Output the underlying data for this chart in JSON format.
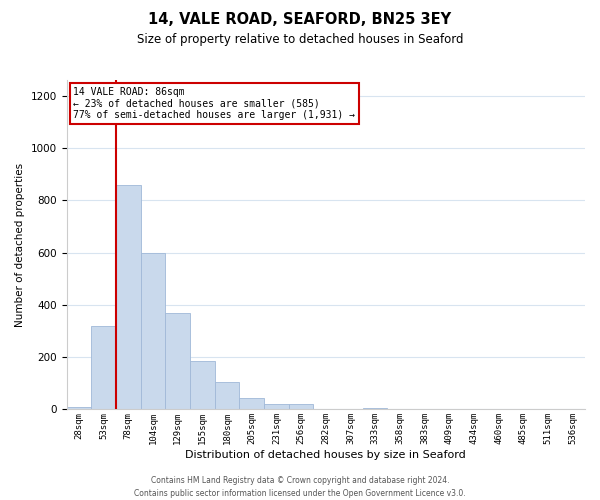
{
  "title": "14, VALE ROAD, SEAFORD, BN25 3EY",
  "subtitle": "Size of property relative to detached houses in Seaford",
  "xlabel": "Distribution of detached houses by size in Seaford",
  "ylabel": "Number of detached properties",
  "bar_labels": [
    "28sqm",
    "53sqm",
    "78sqm",
    "104sqm",
    "129sqm",
    "155sqm",
    "180sqm",
    "205sqm",
    "231sqm",
    "256sqm",
    "282sqm",
    "307sqm",
    "333sqm",
    "358sqm",
    "383sqm",
    "409sqm",
    "434sqm",
    "460sqm",
    "485sqm",
    "511sqm",
    "536sqm"
  ],
  "bar_values": [
    10,
    320,
    860,
    600,
    370,
    185,
    105,
    45,
    20,
    20,
    0,
    0,
    5,
    0,
    0,
    0,
    0,
    0,
    0,
    0,
    0
  ],
  "bar_color": "#c9d9ec",
  "bar_edge_color": "#a0b8d8",
  "vline_x_index": 2,
  "vline_color": "#cc0000",
  "ylim": [
    0,
    1260
  ],
  "yticks": [
    0,
    200,
    400,
    600,
    800,
    1000,
    1200
  ],
  "annotation_title": "14 VALE ROAD: 86sqm",
  "annotation_line1": "← 23% of detached houses are smaller (585)",
  "annotation_line2": "77% of semi-detached houses are larger (1,931) →",
  "annotation_box_color": "#ffffff",
  "annotation_box_edge": "#cc0000",
  "footer1": "Contains HM Land Registry data © Crown copyright and database right 2024.",
  "footer2": "Contains public sector information licensed under the Open Government Licence v3.0.",
  "background_color": "#ffffff",
  "grid_color": "#d8e4f0"
}
